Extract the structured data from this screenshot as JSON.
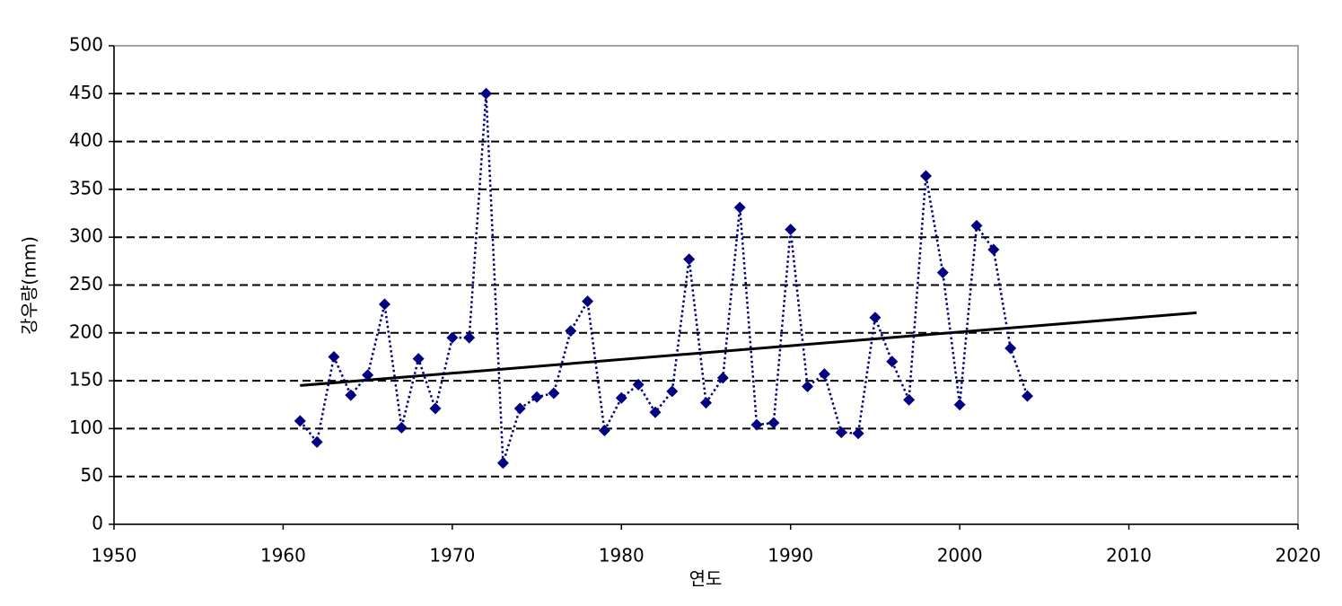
{
  "chart_data": {
    "type": "line",
    "x_label": "연도",
    "y_label": "강우량(mm)",
    "x": [
      1961,
      1962,
      1963,
      1964,
      1965,
      1966,
      1967,
      1968,
      1969,
      1970,
      1971,
      1972,
      1973,
      1974,
      1975,
      1976,
      1977,
      1978,
      1979,
      1980,
      1981,
      1982,
      1983,
      1984,
      1985,
      1986,
      1987,
      1988,
      1989,
      1990,
      1991,
      1992,
      1993,
      1994,
      1995,
      1996,
      1997,
      1998,
      1999,
      2000,
      2001,
      2002,
      2003,
      2004
    ],
    "series": [
      {
        "color": "#000080",
        "values": [
          108,
          86,
          175,
          135,
          156,
          230,
          101,
          173,
          121,
          195,
          195,
          450,
          64,
          121,
          133,
          137,
          202,
          233,
          98,
          132,
          146,
          117,
          139,
          277,
          127,
          153,
          331,
          104,
          106,
          308,
          144,
          157,
          96,
          95,
          216,
          170,
          130,
          364,
          263,
          125,
          312,
          287,
          184,
          134
        ]
      }
    ],
    "trend": {
      "x": [
        1961,
        2014
      ],
      "values": [
        145,
        221
      ],
      "color": "#000000"
    },
    "xlim": [
      1950,
      2020
    ],
    "xticks": [
      1950,
      1960,
      1970,
      1980,
      1990,
      2000,
      2010,
      2020
    ],
    "ylim": [
      0,
      500
    ],
    "yticks": [
      0,
      50,
      100,
      150,
      200,
      250,
      300,
      350,
      400,
      450,
      500
    ],
    "grid": true
  }
}
